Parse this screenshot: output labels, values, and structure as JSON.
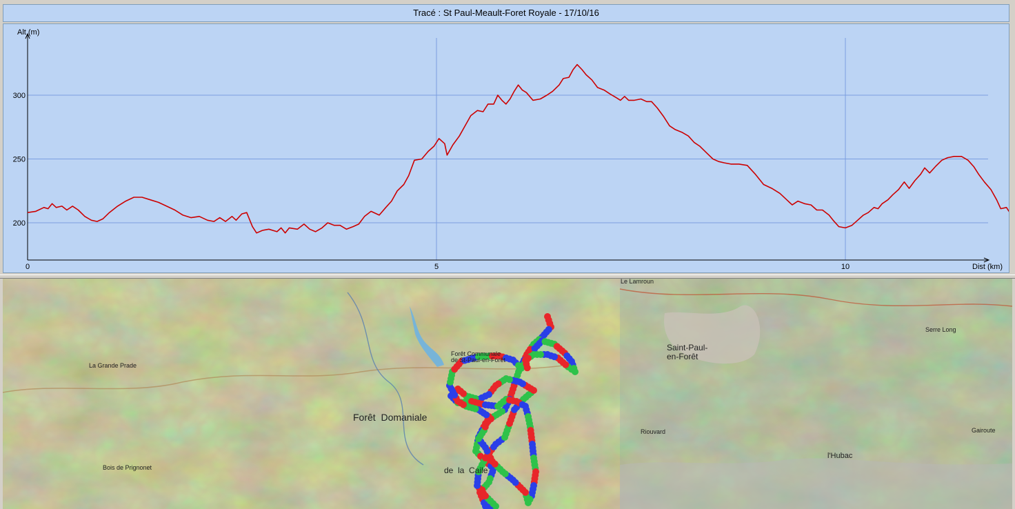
{
  "window": {
    "title": "Tracé : St Paul-Meault-Foret Royale - 17/10/16"
  },
  "chart_data": {
    "type": "line",
    "ylabel": "Alt (m)",
    "xlabel": "Dist (km)",
    "xlim": [
      0,
      11.75
    ],
    "ylim": [
      170,
      345
    ],
    "x_ticks": [
      0,
      5,
      10
    ],
    "y_ticks": [
      200,
      250,
      300
    ],
    "grid": true,
    "series": [
      {
        "color": "#cc0000",
        "points": [
          [
            0,
            208
          ],
          [
            0.1,
            209
          ],
          [
            0.2,
            212
          ],
          [
            0.25,
            211
          ],
          [
            0.3,
            215
          ],
          [
            0.35,
            212
          ],
          [
            0.42,
            213
          ],
          [
            0.48,
            210
          ],
          [
            0.55,
            213
          ],
          [
            0.62,
            210
          ],
          [
            0.7,
            205
          ],
          [
            0.78,
            202
          ],
          [
            0.85,
            201
          ],
          [
            0.92,
            203
          ],
          [
            1.0,
            208
          ],
          [
            1.1,
            213
          ],
          [
            1.2,
            217
          ],
          [
            1.3,
            220
          ],
          [
            1.4,
            220
          ],
          [
            1.5,
            218
          ],
          [
            1.6,
            216
          ],
          [
            1.7,
            213
          ],
          [
            1.8,
            210
          ],
          [
            1.9,
            206
          ],
          [
            2.0,
            204
          ],
          [
            2.1,
            205
          ],
          [
            2.2,
            202
          ],
          [
            2.28,
            201
          ],
          [
            2.35,
            204
          ],
          [
            2.42,
            201
          ],
          [
            2.5,
            205
          ],
          [
            2.55,
            202
          ],
          [
            2.62,
            207
          ],
          [
            2.68,
            208
          ],
          [
            2.75,
            197
          ],
          [
            2.8,
            192
          ],
          [
            2.87,
            194
          ],
          [
            2.95,
            195
          ],
          [
            3.05,
            193
          ],
          [
            3.1,
            196
          ],
          [
            3.15,
            192
          ],
          [
            3.2,
            196
          ],
          [
            3.3,
            195
          ],
          [
            3.38,
            199
          ],
          [
            3.45,
            195
          ],
          [
            3.52,
            193
          ],
          [
            3.6,
            196
          ],
          [
            3.67,
            200
          ],
          [
            3.75,
            198
          ],
          [
            3.82,
            198
          ],
          [
            3.9,
            195
          ],
          [
            3.98,
            197
          ],
          [
            4.05,
            199
          ],
          [
            4.12,
            205
          ],
          [
            4.2,
            209
          ],
          [
            4.3,
            206
          ],
          [
            4.38,
            212
          ],
          [
            4.45,
            217
          ],
          [
            4.52,
            225
          ],
          [
            4.6,
            230
          ],
          [
            4.66,
            237
          ],
          [
            4.73,
            249
          ],
          [
            4.82,
            250
          ],
          [
            4.9,
            256
          ],
          [
            4.97,
            260
          ],
          [
            5.03,
            266
          ],
          [
            5.1,
            262
          ],
          [
            5.13,
            253
          ],
          [
            5.2,
            261
          ],
          [
            5.28,
            268
          ],
          [
            5.35,
            276
          ],
          [
            5.42,
            284
          ],
          [
            5.5,
            288
          ],
          [
            5.57,
            287
          ],
          [
            5.63,
            293
          ],
          [
            5.7,
            293
          ],
          [
            5.75,
            300
          ],
          [
            5.8,
            296
          ],
          [
            5.85,
            293
          ],
          [
            5.9,
            297
          ],
          [
            5.95,
            303
          ],
          [
            6.0,
            308
          ],
          [
            6.05,
            304
          ],
          [
            6.1,
            302
          ],
          [
            6.18,
            296
          ],
          [
            6.27,
            297
          ],
          [
            6.35,
            300
          ],
          [
            6.42,
            303
          ],
          [
            6.5,
            308
          ],
          [
            6.55,
            313
          ],
          [
            6.62,
            314
          ],
          [
            6.67,
            320
          ],
          [
            6.72,
            324
          ],
          [
            6.78,
            320
          ],
          [
            6.83,
            316
          ],
          [
            6.9,
            312
          ],
          [
            6.97,
            306
          ],
          [
            7.05,
            304
          ],
          [
            7.12,
            301
          ],
          [
            7.2,
            298
          ],
          [
            7.25,
            296
          ],
          [
            7.3,
            299
          ],
          [
            7.35,
            296
          ],
          [
            7.42,
            296
          ],
          [
            7.5,
            297
          ],
          [
            7.57,
            295
          ],
          [
            7.63,
            295
          ],
          [
            7.7,
            290
          ],
          [
            7.78,
            283
          ],
          [
            7.85,
            276
          ],
          [
            7.92,
            273
          ],
          [
            8.0,
            271
          ],
          [
            8.08,
            268
          ],
          [
            8.15,
            263
          ],
          [
            8.22,
            260
          ],
          [
            8.3,
            255
          ],
          [
            8.38,
            250
          ],
          [
            8.45,
            248
          ],
          [
            8.52,
            247
          ],
          [
            8.6,
            246
          ],
          [
            8.7,
            246
          ],
          [
            8.8,
            245
          ],
          [
            8.9,
            238
          ],
          [
            9.0,
            230
          ],
          [
            9.1,
            227
          ],
          [
            9.2,
            223
          ],
          [
            9.3,
            217
          ],
          [
            9.35,
            214
          ],
          [
            9.42,
            217
          ],
          [
            9.5,
            215
          ],
          [
            9.58,
            214
          ],
          [
            9.65,
            210
          ],
          [
            9.72,
            210
          ],
          [
            9.8,
            206
          ],
          [
            9.85,
            202
          ],
          [
            9.92,
            197
          ],
          [
            10.0,
            196
          ],
          [
            10.08,
            198
          ],
          [
            10.15,
            202
          ],
          [
            10.22,
            206
          ],
          [
            10.28,
            208
          ],
          [
            10.35,
            212
          ],
          [
            10.4,
            211
          ],
          [
            10.45,
            215
          ],
          [
            10.52,
            218
          ],
          [
            10.58,
            222
          ],
          [
            10.65,
            226
          ],
          [
            10.72,
            232
          ],
          [
            10.78,
            227
          ],
          [
            10.85,
            233
          ],
          [
            10.92,
            238
          ],
          [
            10.97,
            243
          ],
          [
            11.03,
            239
          ],
          [
            11.1,
            244
          ],
          [
            11.18,
            249
          ],
          [
            11.25,
            251
          ],
          [
            11.33,
            252
          ],
          [
            11.42,
            252
          ],
          [
            11.5,
            249
          ],
          [
            11.57,
            244
          ],
          [
            11.63,
            238
          ],
          [
            11.7,
            232
          ],
          [
            11.78,
            226
          ],
          [
            11.85,
            218
          ],
          [
            11.9,
            211
          ],
          [
            11.97,
            212
          ],
          [
            12.02,
            207
          ],
          [
            12.07,
            203
          ],
          [
            12.13,
            204
          ],
          [
            12.18,
            205
          ],
          [
            12.25,
            206
          ]
        ]
      }
    ]
  },
  "map": {
    "labels": [
      {
        "id": "saint-paul",
        "text": "Saint-Paul-\nen-Forêt"
      },
      {
        "id": "foret-domaniale",
        "text": "Forêt  Domaniale"
      },
      {
        "id": "foret-communale",
        "text": "Forêt Communale\nde St-Paul-en-Forêt"
      },
      {
        "id": "hubac",
        "text": "l'Hubac"
      },
      {
        "id": "grande-prade",
        "text": "La Grande Prade"
      },
      {
        "id": "bois-prignonet",
        "text": "Bois de Prignonet"
      },
      {
        "id": "serre-long",
        "text": "Serre Long"
      },
      {
        "id": "gairoute",
        "text": "Gairoute"
      },
      {
        "id": "riouvard",
        "text": "Riouvard"
      },
      {
        "id": "de-la-caile",
        "text": "de  la  Caile"
      },
      {
        "id": "le-lamroun",
        "text": "Le Lamroun"
      }
    ],
    "track_colors": [
      "#e8262a",
      "#2a3fe8",
      "#2ec24a"
    ]
  }
}
